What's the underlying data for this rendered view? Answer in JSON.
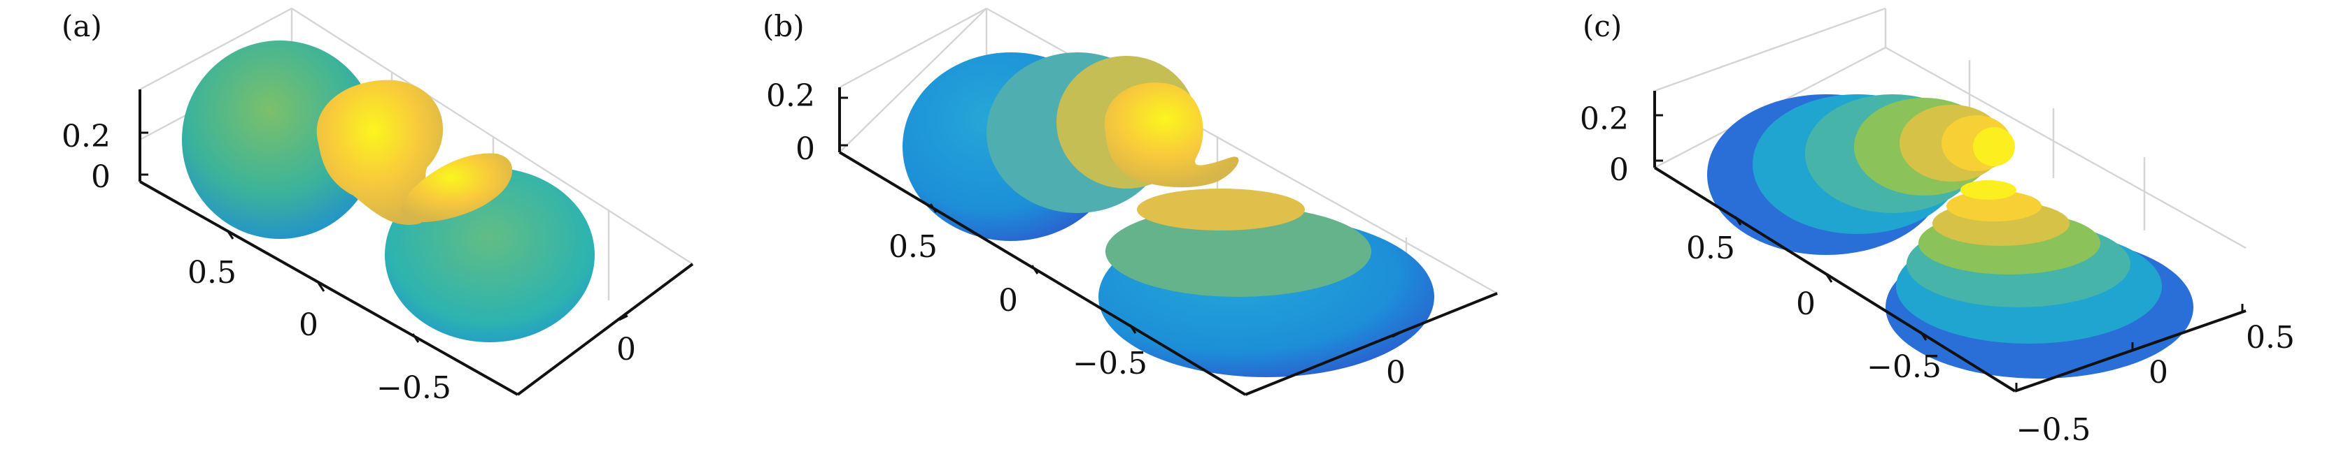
{
  "chart_data": [
    {
      "type": "surface",
      "panel_label": "(a)",
      "z_ticks": [
        "0",
        "0.2"
      ],
      "y_ticks": [
        "0.5",
        "0",
        "−0.5"
      ],
      "x_ticks": [
        "0"
      ],
      "lobes": [
        {
          "lobe": "main",
          "color": "#35b778"
        },
        {
          "lobe": "mid",
          "color": "#f9d93a"
        },
        {
          "lobe": "small",
          "color": "#fde725"
        },
        {
          "lobe": "back",
          "color": "#3bb8a8"
        }
      ],
      "colormap": [
        "#3e26a8",
        "#2a8fde",
        "#1cb9bd",
        "#8cc25a",
        "#f5c23a",
        "#f9fb15"
      ]
    },
    {
      "type": "surface",
      "panel_label": "(b)",
      "z_ticks": [
        "0",
        "0.2"
      ],
      "y_ticks": [
        "0.5",
        "0",
        "−0.5"
      ],
      "x_ticks": [
        "0"
      ],
      "colormap": [
        "#3e26a8",
        "#2a8fde",
        "#1cb9bd",
        "#8cc25a",
        "#f5c23a",
        "#f9fb15"
      ]
    },
    {
      "type": "surface",
      "panel_label": "(c)",
      "z_ticks": [
        "0",
        "0.2"
      ],
      "y_ticks": [
        "0.5",
        "0",
        "−0.5"
      ],
      "x_ticks": [
        "−0.5",
        "0",
        "0.5"
      ],
      "colormap": [
        "#3e26a8",
        "#2a8fde",
        "#1cb9bd",
        "#8cc25a",
        "#f5c23a",
        "#f9fb15"
      ]
    }
  ]
}
